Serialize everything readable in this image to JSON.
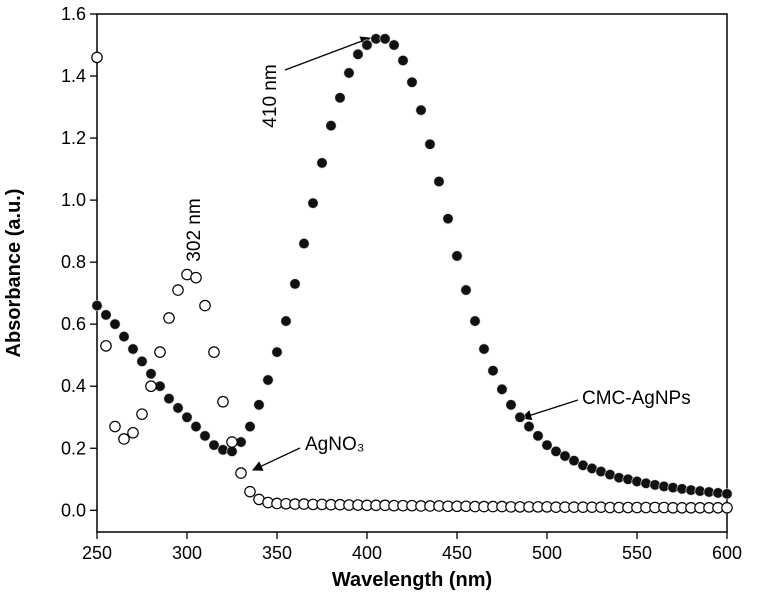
{
  "chart_data": {
    "type": "scatter",
    "x_label": "Wavelength (nm)",
    "y_label": "Absorbance (a.u.)",
    "xlim": [
      250,
      600
    ],
    "xticks": [
      250,
      300,
      350,
      400,
      450,
      500,
      550,
      600
    ],
    "ylim": [
      -0.07,
      1.6
    ],
    "yticks": [
      {
        "value": 0,
        "label": "0.0"
      },
      0.2,
      0.4,
      0.6,
      0.8,
      {
        "value": 1,
        "label": "1.0"
      },
      1.2,
      1.4,
      1.6
    ],
    "annotations": [
      "410 nm",
      "302 nm"
    ],
    "x": [
      250,
      255,
      260,
      265,
      270,
      275,
      280,
      285,
      290,
      295,
      300,
      305,
      310,
      315,
      320,
      325,
      330,
      335,
      340,
      345,
      350,
      355,
      360,
      365,
      370,
      375,
      380,
      385,
      390,
      395,
      400,
      405,
      410,
      415,
      420,
      425,
      430,
      435,
      440,
      445,
      450,
      455,
      460,
      465,
      470,
      475,
      480,
      485,
      490,
      495,
      500,
      505,
      510,
      515,
      520,
      525,
      530,
      535,
      540,
      545,
      550,
      555,
      560,
      565,
      570,
      575,
      580,
      585,
      590,
      595,
      600
    ],
    "series": [
      {
        "name": "CMC-AgNPs",
        "color": "#111111",
        "marker": "filled",
        "values": [
          0.66,
          0.63,
          0.6,
          0.56,
          0.52,
          0.48,
          0.44,
          0.4,
          0.36,
          0.33,
          0.3,
          0.27,
          0.24,
          0.21,
          0.195,
          0.19,
          0.22,
          0.27,
          0.34,
          0.42,
          0.51,
          0.61,
          0.73,
          0.86,
          0.99,
          1.12,
          1.24,
          1.33,
          1.41,
          1.47,
          1.5,
          1.52,
          1.52,
          1.5,
          1.45,
          1.38,
          1.29,
          1.18,
          1.06,
          0.94,
          0.82,
          0.71,
          0.61,
          0.52,
          0.45,
          0.39,
          0.34,
          0.3,
          0.27,
          0.24,
          0.21,
          0.19,
          0.175,
          0.16,
          0.145,
          0.135,
          0.125,
          0.115,
          0.105,
          0.1,
          0.093,
          0.087,
          0.082,
          0.077,
          0.073,
          0.069,
          0.065,
          0.062,
          0.059,
          0.056,
          0.053
        ]
      },
      {
        "name": "AgNO₃",
        "color": "#000000",
        "marker": "open",
        "values": [
          1.46,
          0.53,
          0.27,
          0.23,
          0.25,
          0.31,
          0.4,
          0.51,
          0.62,
          0.71,
          0.76,
          0.75,
          0.66,
          0.51,
          0.35,
          0.22,
          0.12,
          0.06,
          0.035,
          0.025,
          0.022,
          0.021,
          0.02,
          0.02,
          0.019,
          0.019,
          0.018,
          0.018,
          0.017,
          0.017,
          0.016,
          0.016,
          0.016,
          0.015,
          0.015,
          0.015,
          0.014,
          0.014,
          0.014,
          0.013,
          0.013,
          0.013,
          0.012,
          0.012,
          0.012,
          0.012,
          0.011,
          0.011,
          0.011,
          0.011,
          0.011,
          0.01,
          0.01,
          0.01,
          0.01,
          0.01,
          0.01,
          0.009,
          0.009,
          0.009,
          0.009,
          0.009,
          0.009,
          0.009,
          0.008,
          0.008,
          0.008,
          0.008,
          0.008,
          0.008,
          0.008
        ]
      }
    ]
  }
}
